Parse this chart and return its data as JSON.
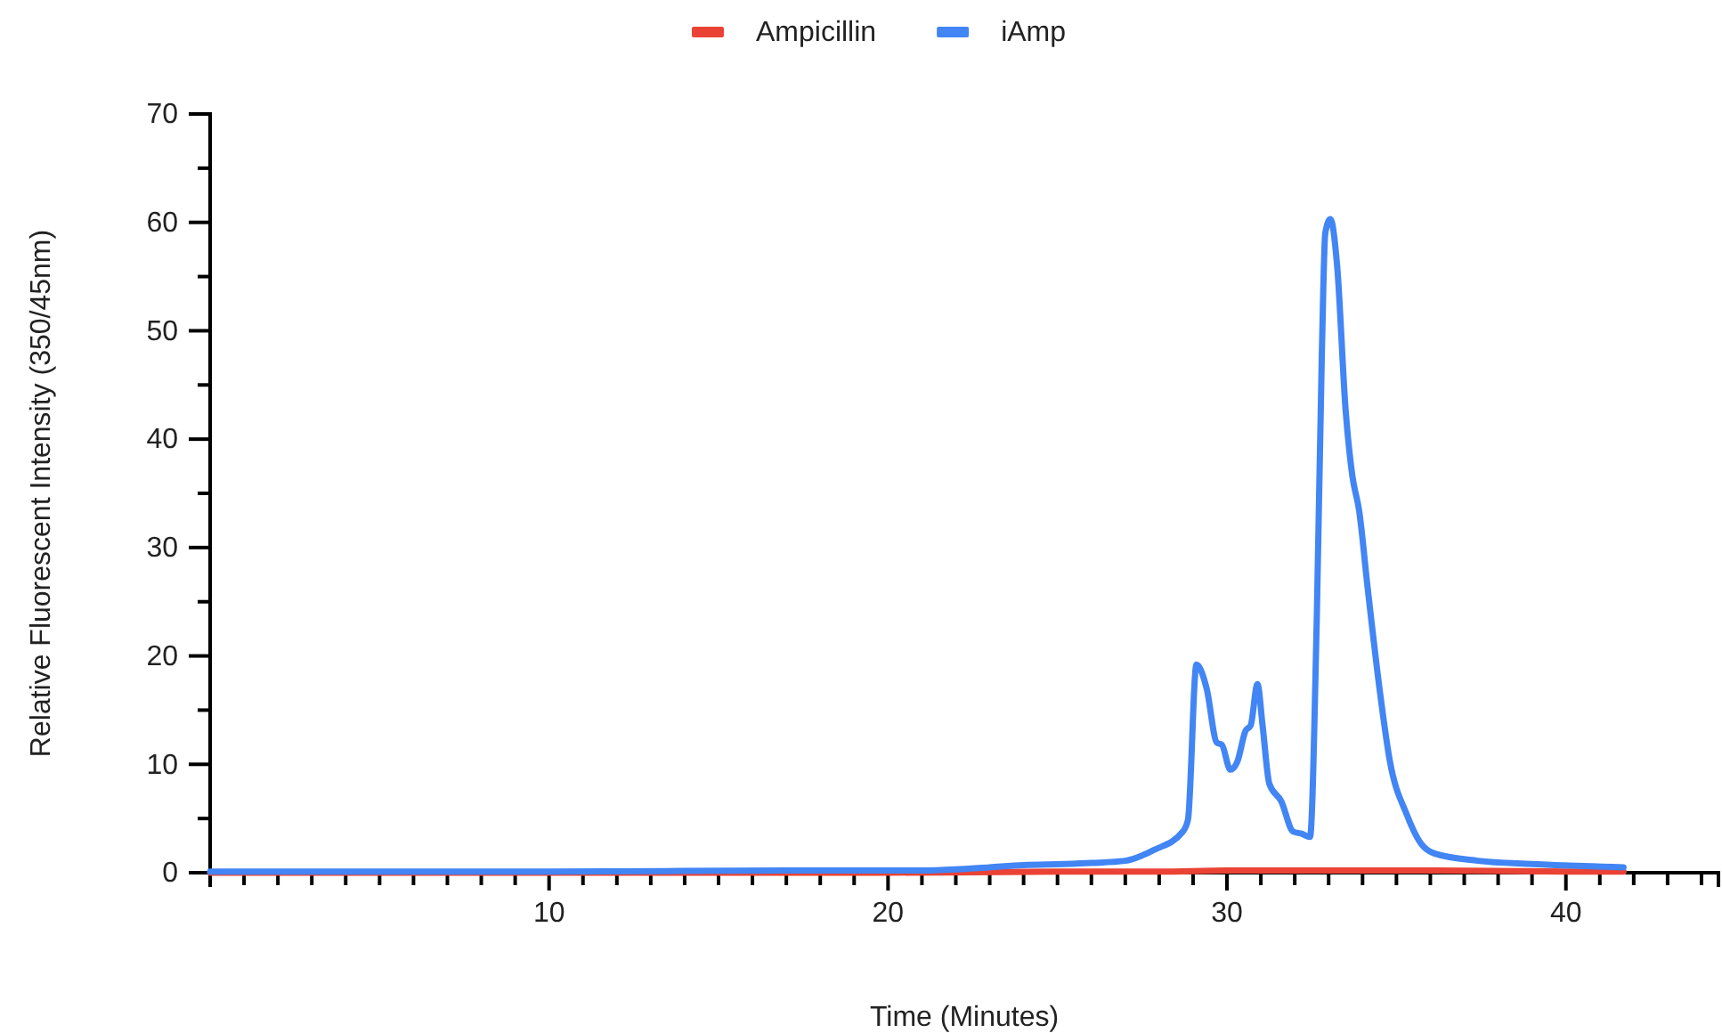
{
  "chart_data": {
    "type": "line",
    "xlabel": "Time (Minutes)",
    "ylabel": "Relative Fluorescent Intensity (350/45nm)",
    "legend": "top",
    "grid": false,
    "marker": "none",
    "line_style": "solid",
    "xlim": [
      0,
      44.5
    ],
    "ylim": [
      0,
      70
    ],
    "xticks": [
      {
        "value": 1,
        "label": null
      },
      {
        "value": 2,
        "label": null
      },
      {
        "value": 3,
        "label": null
      },
      {
        "value": 4,
        "label": null
      },
      {
        "value": 5,
        "label": null
      },
      {
        "value": 6,
        "label": null
      },
      {
        "value": 7,
        "label": null
      },
      {
        "value": 8,
        "label": null
      },
      {
        "value": 9,
        "label": null
      },
      10,
      {
        "value": 11,
        "label": null
      },
      {
        "value": 12,
        "label": null
      },
      {
        "value": 13,
        "label": null
      },
      {
        "value": 14,
        "label": null
      },
      {
        "value": 15,
        "label": null
      },
      {
        "value": 16,
        "label": null
      },
      {
        "value": 17,
        "label": null
      },
      {
        "value": 18,
        "label": null
      },
      {
        "value": 19,
        "label": null
      },
      20,
      {
        "value": 21,
        "label": null
      },
      {
        "value": 22,
        "label": null
      },
      {
        "value": 23,
        "label": null
      },
      {
        "value": 24,
        "label": null
      },
      {
        "value": 25,
        "label": null
      },
      {
        "value": 26,
        "label": null
      },
      {
        "value": 27,
        "label": null
      },
      {
        "value": 28,
        "label": null
      },
      {
        "value": 29,
        "label": null
      },
      30,
      {
        "value": 31,
        "label": null
      },
      {
        "value": 32,
        "label": null
      },
      {
        "value": 33,
        "label": null
      },
      {
        "value": 34,
        "label": null
      },
      {
        "value": 35,
        "label": null
      },
      {
        "value": 36,
        "label": null
      },
      {
        "value": 37,
        "label": null
      },
      {
        "value": 38,
        "label": null
      },
      {
        "value": 39,
        "label": null
      },
      40,
      {
        "value": 41,
        "label": null
      },
      {
        "value": 42,
        "label": null
      },
      {
        "value": 43,
        "label": null
      },
      {
        "value": 44,
        "label": null
      }
    ],
    "yticks": [
      0,
      {
        "value": 5,
        "label": null
      },
      10,
      {
        "value": 15,
        "label": null
      },
      20,
      {
        "value": 25,
        "label": null
      },
      30,
      {
        "value": 35,
        "label": null
      },
      40,
      {
        "value": 45,
        "label": null
      },
      50,
      {
        "value": 55,
        "label": null
      },
      60,
      {
        "value": 65,
        "label": null
      },
      70
    ],
    "series": [
      {
        "name": "Ampicillin",
        "color": "#ea4335",
        "x": [
          0,
          10,
          20,
          25,
          28,
          30,
          33,
          36,
          40,
          41.7
        ],
        "values": [
          0,
          0,
          0,
          0.1,
          0.1,
          0.2,
          0.2,
          0.2,
          0.1,
          0.1
        ]
      },
      {
        "name": "iAmp",
        "color": "#4285f4",
        "x": [
          0,
          10,
          17,
          20,
          21,
          22,
          23,
          24,
          25.2,
          26,
          27,
          27.85,
          28.7,
          28.85,
          29.1,
          29.4,
          29.7,
          29.85,
          30.1,
          30.3,
          30.55,
          30.7,
          30.9,
          31.05,
          31.25,
          31.6,
          31.95,
          32.2,
          32.45,
          32.65,
          32.8,
          32.9,
          33.05,
          33.25,
          33.5,
          33.7,
          33.9,
          34.15,
          34.5,
          34.8,
          35.3,
          35.7,
          36.1,
          37.4,
          39,
          41.7
        ],
        "values": [
          0.1,
          0.1,
          0.2,
          0.2,
          0.2,
          0.3,
          0.5,
          0.7,
          0.8,
          0.9,
          1.1,
          2.1,
          3.8,
          4.9,
          19.2,
          17,
          12,
          11.8,
          9.5,
          10.2,
          13.1,
          13.6,
          17.4,
          13.6,
          8.2,
          6.6,
          3.8,
          3.6,
          3.3,
          23.5,
          48,
          59,
          60.3,
          56,
          42.7,
          36.6,
          33.4,
          26.3,
          17,
          10.4,
          5.4,
          2.8,
          1.8,
          1.1,
          0.8,
          0.5
        ]
      }
    ]
  }
}
